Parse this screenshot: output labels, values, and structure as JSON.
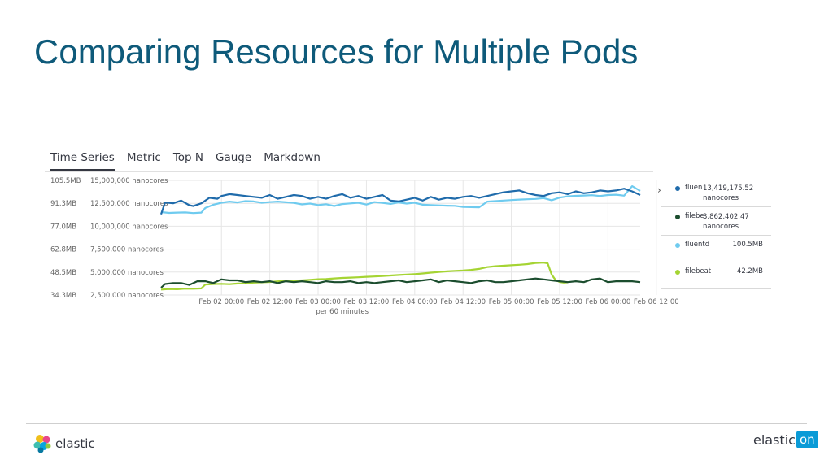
{
  "slide": {
    "title": "Comparing Resources for Multiple Pods"
  },
  "tabs": [
    {
      "label": "Time Series",
      "active": true
    },
    {
      "label": "Metric"
    },
    {
      "label": "Top N"
    },
    {
      "label": "Gauge"
    },
    {
      "label": "Markdown"
    }
  ],
  "legend": {
    "toggle_glyph": "›",
    "items": [
      {
        "name": "fluen",
        "value": "13,419,175.52",
        "unit": "nanocores",
        "color": "#1f6bab"
      },
      {
        "name": "filebe",
        "value": "3,862,402.47",
        "unit": "nanocores",
        "color": "#1b4d2e"
      },
      {
        "name": "fluentd",
        "value": "100.5MB",
        "color": "#6fcbef"
      },
      {
        "name": "filebeat",
        "value": "42.2MB",
        "color": "#a5d433"
      }
    ]
  },
  "footer": {
    "left_brand": "elastic",
    "right_brand_word": "elastic",
    "right_brand_badge": "on"
  },
  "chart_data": {
    "type": "line",
    "xlabel": "per 60 minutes",
    "x_ticks": [
      "Feb 02 00:00",
      "Feb 02 12:00",
      "Feb 03 00:00",
      "Feb 03 12:00",
      "Feb 04 00:00",
      "Feb 04 12:00",
      "Feb 05 00:00",
      "Feb 05 12:00",
      "Feb 06 00:00",
      "Feb 06 12:00"
    ],
    "x_range_hours": [
      -15,
      104
    ],
    "left_axis": {
      "unit": "MB",
      "range": [
        34.3,
        105.5
      ],
      "tick_labels": [
        "105.5MB",
        "91.3MB",
        "77.0MB",
        "62.8MB",
        "48.5MB",
        "34.3MB"
      ]
    },
    "right_axis": {
      "unit": "nanocores",
      "range": [
        2500000,
        15000000
      ],
      "tick_labels": [
        "15,000,000 nanocores",
        "12,500,000 nanocores",
        "10,000,000 nanocores",
        "7,500,000 nanocores",
        "5,000,000 nanocores",
        "2,500,000 nanocores"
      ]
    },
    "series": [
      {
        "name": "fluentd (cpu)",
        "axis": "right",
        "color": "#1f6bab",
        "x": [
          -15,
          -14,
          -12,
          -10,
          -8,
          -7,
          -5,
          -3,
          -1,
          0,
          2,
          4,
          6,
          8,
          10,
          12,
          14,
          16,
          18,
          20,
          22,
          24,
          26,
          28,
          30,
          32,
          34,
          36,
          38,
          40,
          42,
          44,
          46,
          48,
          50,
          52,
          54,
          56,
          58,
          60,
          62,
          64,
          66,
          68,
          70,
          72,
          74,
          76,
          78,
          80,
          82,
          84,
          86,
          88,
          90,
          92,
          94,
          96,
          98,
          100,
          102,
          104
        ],
        "values": [
          11.3,
          12.6,
          12.5,
          12.8,
          12.3,
          12.2,
          12.5,
          13.1,
          13.0,
          13.3,
          13.5,
          13.4,
          13.3,
          13.2,
          13.1,
          13.4,
          13.0,
          13.2,
          13.4,
          13.3,
          13.0,
          13.2,
          13.0,
          13.3,
          13.5,
          13.1,
          13.3,
          13.0,
          13.2,
          13.4,
          12.8,
          12.7,
          12.9,
          13.1,
          12.8,
          13.2,
          12.9,
          13.1,
          13.0,
          13.2,
          13.3,
          13.1,
          13.3,
          13.5,
          13.7,
          13.8,
          13.9,
          13.6,
          13.4,
          13.3,
          13.6,
          13.7,
          13.5,
          13.8,
          13.6,
          13.7,
          13.9,
          13.8,
          13.9,
          14.1,
          13.8,
          13.4
        ]
      },
      {
        "name": "filebeat (cpu)",
        "axis": "right",
        "color": "#1b4d2e",
        "x": [
          -15,
          -14,
          -12,
          -10,
          -8,
          -6,
          -4,
          -2,
          0,
          2,
          4,
          6,
          8,
          10,
          12,
          14,
          16,
          18,
          20,
          22,
          24,
          26,
          28,
          30,
          32,
          34,
          36,
          38,
          40,
          42,
          44,
          46,
          48,
          50,
          52,
          54,
          56,
          58,
          60,
          62,
          64,
          66,
          68,
          70,
          72,
          74,
          76,
          78,
          80,
          82,
          84,
          86,
          88,
          90,
          92,
          94,
          96,
          98,
          100,
          102,
          104
        ],
        "values": [
          3.3,
          3.7,
          3.8,
          3.8,
          3.6,
          4.0,
          4.0,
          3.8,
          4.2,
          4.1,
          4.1,
          3.9,
          4.0,
          3.9,
          4.0,
          3.8,
          4.0,
          3.9,
          4.0,
          3.9,
          3.8,
          4.0,
          3.9,
          3.9,
          4.0,
          3.8,
          3.9,
          3.8,
          3.9,
          4.0,
          4.1,
          3.9,
          4.0,
          4.1,
          4.2,
          3.9,
          4.1,
          4.0,
          3.9,
          3.8,
          4.0,
          4.1,
          3.9,
          3.9,
          4.0,
          4.1,
          4.2,
          4.3,
          4.2,
          4.1,
          4.0,
          3.9,
          4.0,
          3.9,
          4.2,
          4.3,
          3.9,
          4.0,
          4.0,
          4.0,
          3.9
        ]
      },
      {
        "name": "fluentd (memory)",
        "axis": "left",
        "color": "#6fcbef",
        "x": [
          -15,
          -13,
          -11,
          -9,
          -7,
          -5,
          -4,
          -2,
          0,
          2,
          4,
          6,
          8,
          10,
          12,
          14,
          16,
          18,
          20,
          22,
          24,
          26,
          28,
          30,
          32,
          34,
          36,
          38,
          40,
          42,
          44,
          46,
          48,
          50,
          52,
          54,
          56,
          58,
          60,
          62,
          64,
          66,
          68,
          70,
          72,
          74,
          76,
          78,
          80,
          82,
          84,
          86,
          88,
          90,
          92,
          94,
          96,
          98,
          100,
          102,
          104
        ],
        "values": [
          85.8,
          85.3,
          85.5,
          85.6,
          85.2,
          85.5,
          88.4,
          90.4,
          91.6,
          92.3,
          91.8,
          92.6,
          92.4,
          91.6,
          92.0,
          92.3,
          91.9,
          91.5,
          90.6,
          91.1,
          90.2,
          90.7,
          89.6,
          90.8,
          91.2,
          91.6,
          90.5,
          92.0,
          91.5,
          90.9,
          91.8,
          91.1,
          91.6,
          90.4,
          90.2,
          90.0,
          89.8,
          89.7,
          89.0,
          88.9,
          88.8,
          92.3,
          92.6,
          93.0,
          93.3,
          93.6,
          93.8,
          94.0,
          94.5,
          93.2,
          94.8,
          95.6,
          95.9,
          96.1,
          96.3,
          95.8,
          96.4,
          96.6,
          96.0,
          101.9,
          99.0
        ]
      },
      {
        "name": "filebeat (memory)",
        "axis": "left",
        "color": "#a5d433",
        "x": [
          -15,
          -13,
          -11,
          -9,
          -7,
          -5,
          -4,
          -2,
          0,
          2,
          4,
          6,
          8,
          10,
          12,
          14,
          16,
          18,
          20,
          22,
          24,
          26,
          28,
          30,
          32,
          34,
          36,
          38,
          40,
          42,
          44,
          46,
          48,
          50,
          52,
          54,
          56,
          58,
          60,
          62,
          64,
          66,
          68,
          70,
          72,
          74,
          76,
          78,
          80,
          81,
          82,
          83,
          84,
          85,
          86
        ],
        "values": [
          37.7,
          38.0,
          37.9,
          38.3,
          38.2,
          38.4,
          40.8,
          41.1,
          41.2,
          41.0,
          41.4,
          41.5,
          42.0,
          42.2,
          42.4,
          42.8,
          43.1,
          43.2,
          43.4,
          43.7,
          44.1,
          44.2,
          44.6,
          44.9,
          45.1,
          45.3,
          45.6,
          45.8,
          46.1,
          46.4,
          46.7,
          47.0,
          47.3,
          47.7,
          48.2,
          48.6,
          49.0,
          49.3,
          49.5,
          49.9,
          50.5,
          51.6,
          52.2,
          52.5,
          52.8,
          53.1,
          53.5,
          54.2,
          54.4,
          54.0,
          47.0,
          43.5,
          42.4,
          42.0,
          42.2
        ]
      }
    ]
  }
}
